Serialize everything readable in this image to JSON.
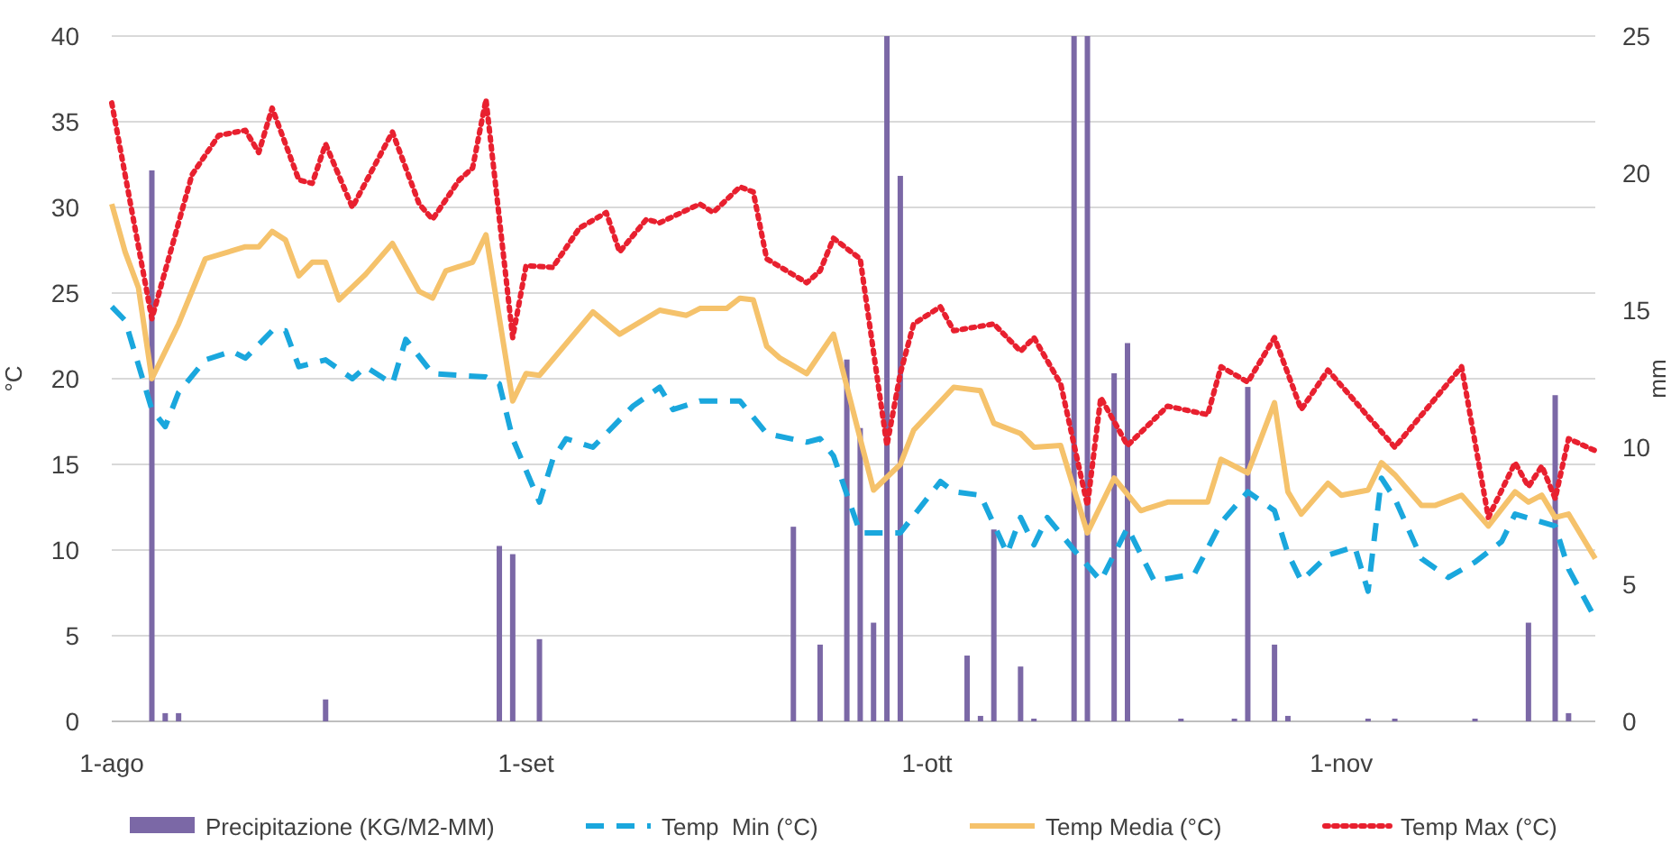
{
  "chart_data": {
    "type": "line",
    "ylabel": "°C",
    "y2label": "mm",
    "xlim": [
      "--08-01",
      "--11-20"
    ],
    "xticks": [
      {
        "value": "--08-01",
        "label": "1-ago"
      },
      {
        "value": "--09-01",
        "label": "1-set"
      },
      {
        "value": "--10-01",
        "label": "1-ott"
      },
      {
        "value": "--11-01",
        "label": "1-nov"
      }
    ],
    "ylim": [
      0,
      40
    ],
    "yticks": [
      0,
      5,
      10,
      15,
      20,
      25,
      30,
      35,
      40
    ],
    "y2lim": [
      0,
      25
    ],
    "y2ticks": [
      0,
      5,
      10,
      15,
      20,
      25
    ],
    "grid": "y",
    "legend": "bottom",
    "series": [
      {
        "name": "Precipitazione (KG/M2-MM)",
        "type": "bar",
        "axis": "y2",
        "color": "#7b68a6",
        "x": [
          "--08-04",
          "--08-05",
          "--08-06",
          "--08-17",
          "--08-30",
          "--08-31",
          "--09-02",
          "--09-21",
          "--09-23",
          "--09-25",
          "--09-26",
          "--09-27",
          "--09-28",
          "--09-29",
          "--10-04",
          "--10-05",
          "--10-06",
          "--10-08",
          "--10-09",
          "--10-12",
          "--10-13",
          "--10-15",
          "--10-16",
          "--10-20",
          "--10-24",
          "--10-25",
          "--10-27",
          "--10-28",
          "--11-03",
          "--11-05",
          "--11-11",
          "--11-15",
          "--11-17",
          "--11-18"
        ],
        "values": [
          20.1,
          0.3,
          0.3,
          0.8,
          6.4,
          6.1,
          3.0,
          7.1,
          2.8,
          13.2,
          10.7,
          3.6,
          25,
          19.9,
          2.4,
          0.2,
          7.0,
          2.0,
          0.1,
          25,
          25,
          12.7,
          13.8,
          0.1,
          0.1,
          12.2,
          2.8,
          0.2,
          0.1,
          0.1,
          0.1,
          3.6,
          11.9,
          0.3
        ]
      },
      {
        "name": "Temp  Min (°C)",
        "line_style": "dashed",
        "color": "#1aa7dd",
        "x": [
          "--08-01",
          "--08-02",
          "--08-04",
          "--08-05",
          "--08-06",
          "--08-08",
          "--08-10",
          "--08-11",
          "--08-13",
          "--08-14",
          "--08-15",
          "--08-17",
          "--08-19",
          "--08-20",
          "--08-22",
          "--08-23",
          "--08-25",
          "--08-27",
          "--08-29",
          "--08-30",
          "--08-31",
          "--09-02",
          "--09-03",
          "--09-04",
          "--09-06",
          "--09-09",
          "--09-11",
          "--09-12",
          "--09-14",
          "--09-17",
          "--09-19",
          "--09-22",
          "--09-23",
          "--09-24",
          "--09-26",
          "--09-29",
          "--10-02",
          "--10-03",
          "--10-05",
          "--10-07",
          "--10-08",
          "--10-09",
          "--10-10",
          "--10-12",
          "--10-14",
          "--10-16",
          "--10-18",
          "--10-21",
          "--10-23",
          "--10-25",
          "--10-27",
          "--10-28",
          "--10-29",
          "--10-31",
          "--11-02",
          "--11-03",
          "--11-04",
          "--11-05",
          "--11-07",
          "--11-09",
          "--11-11",
          "--11-13",
          "--11-14",
          "--11-17",
          "--11-18",
          "--11-20"
        ],
        "values": [
          24.2,
          23.4,
          18.2,
          17.2,
          19.2,
          21.1,
          21.6,
          21.2,
          22.8,
          22.8,
          20.7,
          21.1,
          20,
          20.7,
          19.7,
          22.3,
          20.3,
          20.2,
          20.1,
          19.7,
          16.5,
          12.8,
          15.3,
          16.5,
          16,
          18.4,
          19.5,
          18.2,
          18.7,
          18.7,
          16.8,
          16.3,
          16.5,
          15.5,
          11,
          11,
          14,
          13.4,
          13.2,
          9.8,
          11.9,
          10.3,
          11.9,
          10,
          8.2,
          11.3,
          8.2,
          8.6,
          11.6,
          13.4,
          12.3,
          9.8,
          8.2,
          9.7,
          10.2,
          7.6,
          14.2,
          13,
          9.5,
          8.4,
          9.3,
          10.5,
          12.1,
          11.4,
          8.9,
          6
        ]
      },
      {
        "name": "Temp Media (°C)",
        "line_style": "solid",
        "color": "#f5c26b",
        "x": [
          "--08-01",
          "--08-02",
          "--08-03",
          "--08-04",
          "--08-06",
          "--08-08",
          "--08-11",
          "--08-12",
          "--08-13",
          "--08-14",
          "--08-15",
          "--08-16",
          "--08-17",
          "--08-18",
          "--08-20",
          "--08-22",
          "--08-24",
          "--08-25",
          "--08-26",
          "--08-28",
          "--08-29",
          "--08-31",
          "--09-01",
          "--09-02",
          "--09-06",
          "--09-08",
          "--09-11",
          "--09-13",
          "--09-14",
          "--09-16",
          "--09-17",
          "--09-18",
          "--09-19",
          "--09-20",
          "--09-22",
          "--09-24",
          "--09-26",
          "--09-27",
          "--09-29",
          "--09-30",
          "--10-03",
          "--10-05",
          "--10-06",
          "--10-08",
          "--10-09",
          "--10-11",
          "--10-13",
          "--10-15",
          "--10-17",
          "--10-19",
          "--10-22",
          "--10-23",
          "--10-25",
          "--10-27",
          "--10-28",
          "--10-29",
          "--10-31",
          "--11-01",
          "--11-03",
          "--11-04",
          "--11-05",
          "--11-07",
          "--11-08",
          "--11-10",
          "--11-12",
          "--11-14",
          "--11-15",
          "--11-16",
          "--11-17",
          "--11-18",
          "--11-20"
        ],
        "values": [
          30.2,
          27.4,
          25.3,
          20,
          23.2,
          27,
          27.7,
          27.7,
          28.6,
          28.1,
          26,
          26.8,
          26.8,
          24.6,
          26.1,
          27.9,
          25.1,
          24.7,
          26.3,
          26.8,
          28.4,
          18.7,
          20.3,
          20.2,
          23.9,
          22.6,
          24,
          23.7,
          24.1,
          24.1,
          24.7,
          24.6,
          21.9,
          21.2,
          20.3,
          22.6,
          16.5,
          13.5,
          15,
          17,
          19.5,
          19.3,
          17.4,
          16.8,
          16,
          16.1,
          11,
          14.2,
          12.3,
          12.8,
          12.8,
          15.3,
          14.5,
          18.6,
          13.4,
          12.1,
          13.9,
          13.2,
          13.5,
          15.1,
          14.4,
          12.6,
          12.6,
          13.2,
          11.4,
          13.4,
          12.8,
          13.2,
          11.9,
          12.1,
          9.5
        ]
      },
      {
        "name": "Temp Max (°C)",
        "line_style": "dotted",
        "color": "#e8202f",
        "x": [
          "--08-01",
          "--08-04",
          "--08-07",
          "--08-09",
          "--08-11",
          "--08-12",
          "--08-13",
          "--08-15",
          "--08-16",
          "--08-17",
          "--08-19",
          "--08-22",
          "--08-24",
          "--08-25",
          "--08-27",
          "--08-28",
          "--08-29",
          "--08-31",
          "--09-01",
          "--09-03",
          "--09-05",
          "--09-07",
          "--09-08",
          "--09-10",
          "--09-11",
          "--09-14",
          "--09-15",
          "--09-17",
          "--09-18",
          "--09-19",
          "--09-22",
          "--09-23",
          "--09-24",
          "--09-26",
          "--09-28",
          "--09-29",
          "--09-30",
          "--10-02",
          "--10-03",
          "--10-06",
          "--10-08",
          "--10-09",
          "--10-11",
          "--10-13",
          "--10-14",
          "--10-16",
          "--10-19",
          "--10-22",
          "--10-23",
          "--10-25",
          "--10-27",
          "--10-29",
          "--10-31",
          "--11-05",
          "--11-10",
          "--11-12",
          "--11-14",
          "--11-15",
          "--11-16",
          "--11-17",
          "--11-18",
          "--11-20"
        ],
        "values": [
          36.1,
          23.5,
          31.9,
          34.2,
          34.5,
          33.2,
          35.8,
          31.6,
          31.4,
          33.7,
          30,
          34.4,
          30.2,
          29.3,
          31.6,
          32.3,
          36.3,
          22.4,
          26.6,
          26.5,
          28.8,
          29.7,
          27.4,
          29.3,
          29.1,
          30.2,
          29.7,
          31.2,
          30.9,
          27,
          25.6,
          26.3,
          28.2,
          27,
          16.1,
          20.3,
          23.2,
          24.2,
          22.8,
          23.2,
          21.6,
          22.4,
          19.7,
          12.6,
          18.9,
          16.1,
          18.4,
          17.9,
          20.7,
          19.8,
          22.4,
          18.2,
          20.5,
          16,
          20.7,
          11.9,
          15.1,
          13.7,
          14.9,
          13,
          16.5,
          15.8
        ]
      }
    ]
  }
}
